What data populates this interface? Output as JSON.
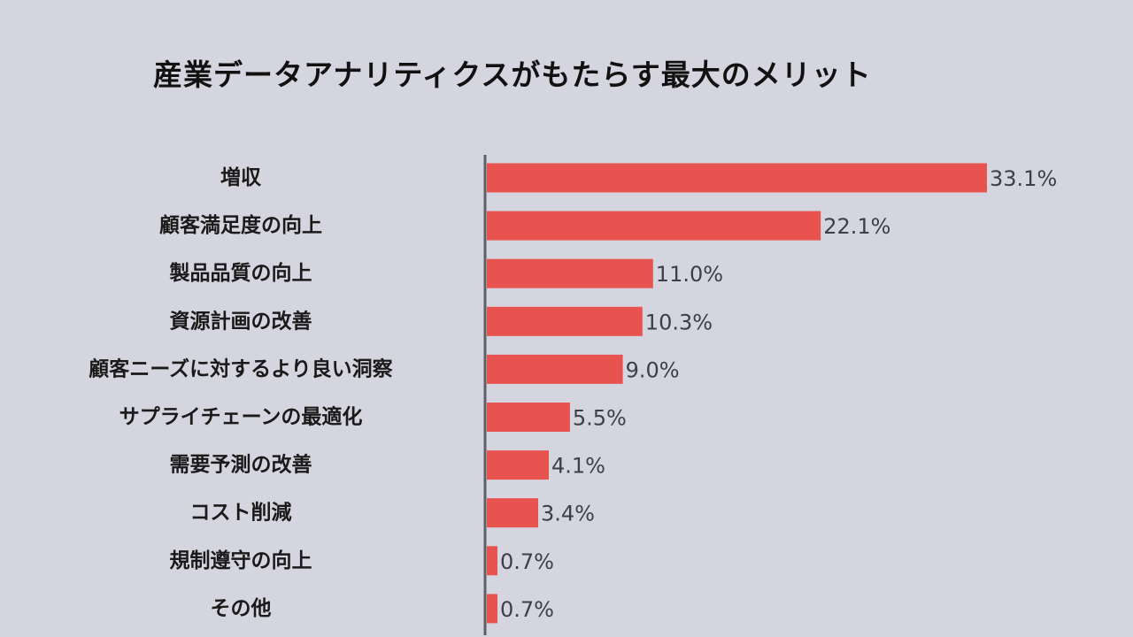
{
  "chart_data": {
    "type": "bar",
    "orientation": "horizontal",
    "title": "産業データアナリティクスがもたらす最大のメリット",
    "categories": [
      "増収",
      "顧客満足度の向上",
      "製品品質の向上",
      "資源計画の改善",
      "顧客ニーズに対するより良い洞察",
      "サプライチェーンの最適化",
      "需要予測の改善",
      "コスト削減",
      "規制遵守の向上",
      "その他"
    ],
    "values": [
      33.1,
      22.1,
      11.0,
      10.3,
      9.0,
      5.5,
      4.1,
      3.4,
      0.7,
      0.7
    ],
    "value_labels": [
      "33.1%",
      "22.1%",
      "11.0%",
      "10.3%",
      "9.0%",
      "5.5%",
      "4.1%",
      "3.4%",
      "0.7%",
      "0.7%"
    ],
    "unit": "%",
    "xlim": [
      0,
      33.1
    ],
    "grid": false,
    "legend": "none",
    "bar_color": "#e8534f",
    "axis_color": "#5a5f6a",
    "background_color": "#d5d5df"
  }
}
